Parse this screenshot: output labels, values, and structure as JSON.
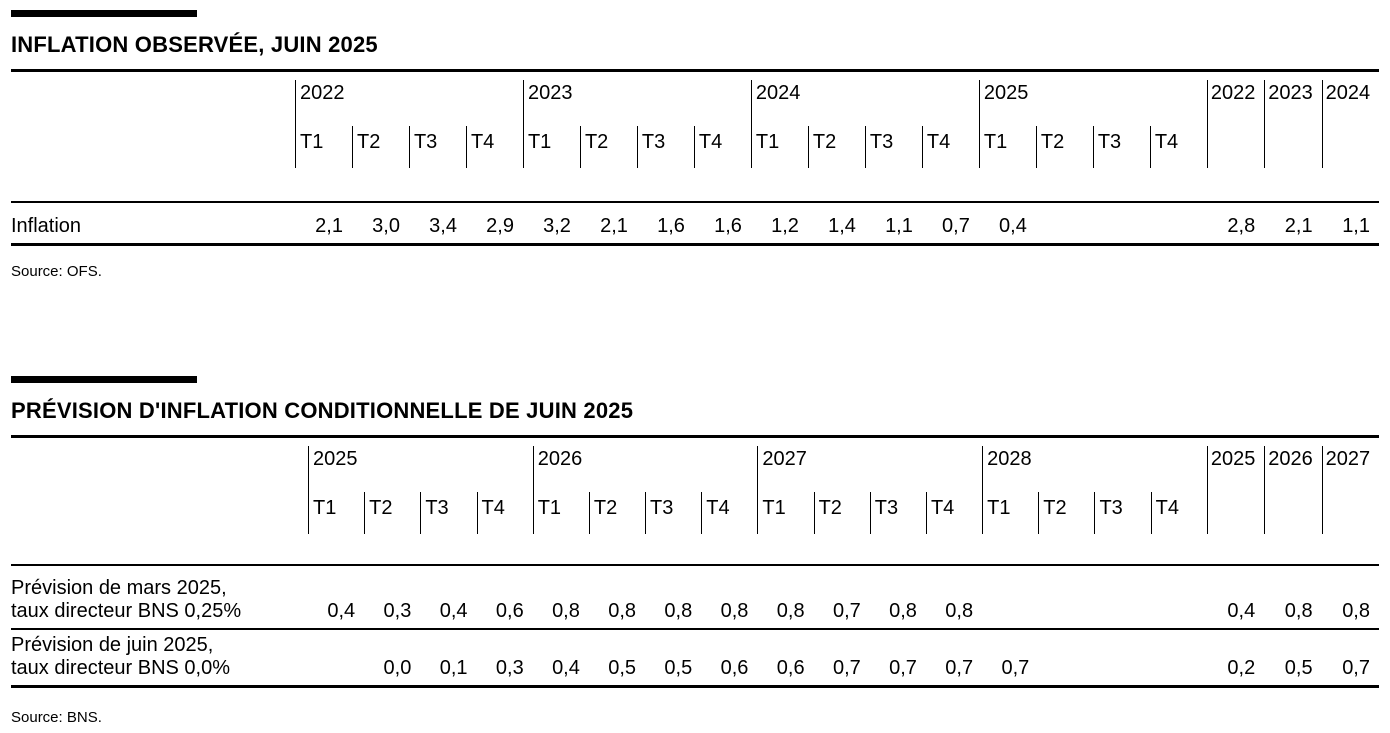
{
  "colors": {
    "text": "#000000",
    "background": "#ffffff",
    "rule": "#000000"
  },
  "quarters": [
    "T1",
    "T2",
    "T3",
    "T4"
  ],
  "table1": {
    "title": "INFLATION OBSERVÉE, JUIN 2025",
    "years": [
      "2022",
      "2023",
      "2024",
      "2025"
    ],
    "annual_years": [
      "2022",
      "2023",
      "2024"
    ],
    "rows": [
      {
        "label": "Inflation",
        "quarterly": [
          "2,1",
          "3,0",
          "3,4",
          "2,9",
          "3,2",
          "2,1",
          "1,6",
          "1,6",
          "1,2",
          "1,4",
          "1,1",
          "0,7",
          "0,4",
          "",
          "",
          ""
        ],
        "annual": [
          "2,8",
          "2,1",
          "1,1"
        ]
      }
    ],
    "source": "Source: OFS."
  },
  "table2": {
    "title": "PRÉVISION D'INFLATION CONDITIONNELLE DE JUIN 2025",
    "years": [
      "2025",
      "2026",
      "2027",
      "2028"
    ],
    "annual_years": [
      "2025",
      "2026",
      "2027"
    ],
    "rows": [
      {
        "label_line1": "Prévision de mars 2025,",
        "label_line2": "taux directeur BNS 0,25%",
        "quarterly": [
          "0,4",
          "0,3",
          "0,4",
          "0,6",
          "0,8",
          "0,8",
          "0,8",
          "0,8",
          "0,8",
          "0,7",
          "0,8",
          "0,8",
          "",
          "",
          "",
          ""
        ],
        "annual": [
          "0,4",
          "0,8",
          "0,8"
        ]
      },
      {
        "label_line1": "Prévision de juin 2025,",
        "label_line2": "taux directeur BNS 0,0%",
        "quarterly": [
          "",
          "0,0",
          "0,1",
          "0,3",
          "0,4",
          "0,5",
          "0,5",
          "0,6",
          "0,6",
          "0,7",
          "0,7",
          "0,7",
          "0,7",
          "",
          "",
          ""
        ],
        "annual": [
          "0,2",
          "0,5",
          "0,7"
        ]
      }
    ],
    "source": "Source: BNS."
  }
}
